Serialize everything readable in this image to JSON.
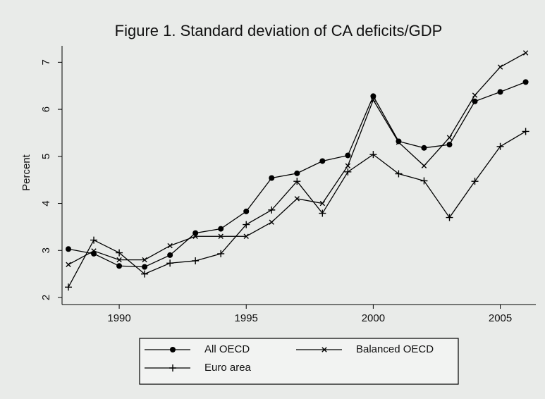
{
  "chart_data": {
    "type": "line",
    "title": "Figure 1. Standard deviation of CA deficits/GDP",
    "y_label": "Percent",
    "x": [
      1988,
      1989,
      1990,
      1991,
      1992,
      1993,
      1994,
      1995,
      1996,
      1997,
      1998,
      1999,
      2000,
      2001,
      2002,
      2003,
      2004,
      2005,
      2006
    ],
    "series": [
      {
        "name": "All OECD",
        "color": "#000000",
        "marker": "circle",
        "values": [
          3.03,
          2.93,
          2.67,
          2.65,
          2.9,
          3.37,
          3.46,
          3.83,
          4.54,
          4.64,
          4.9,
          5.02,
          6.28,
          5.32,
          5.18,
          5.25,
          6.17,
          6.37,
          6.58
        ]
      },
      {
        "name": "Balanced OECD",
        "color": "#000000",
        "marker": "x",
        "values": [
          2.7,
          2.99,
          2.8,
          2.8,
          3.1,
          3.3,
          3.3,
          3.3,
          3.6,
          4.1,
          4.0,
          4.8,
          6.2,
          5.3,
          4.8,
          5.4,
          6.3,
          6.9,
          7.2
        ]
      },
      {
        "name": "Euro area",
        "color": "#000000",
        "marker": "plus",
        "values": [
          2.22,
          3.22,
          2.95,
          2.5,
          2.73,
          2.78,
          2.93,
          3.55,
          3.86,
          4.47,
          3.79,
          4.67,
          5.04,
          4.63,
          4.48,
          3.7,
          4.47,
          5.21,
          5.53
        ]
      }
    ],
    "xlim": [
      1987.75,
      2006.4
    ],
    "xticks": [
      1990,
      1995,
      2000,
      2005
    ],
    "ylim": [
      1.85,
      7.35
    ],
    "yticks": [
      2,
      3,
      4,
      5,
      6,
      7
    ],
    "grid": false
  }
}
